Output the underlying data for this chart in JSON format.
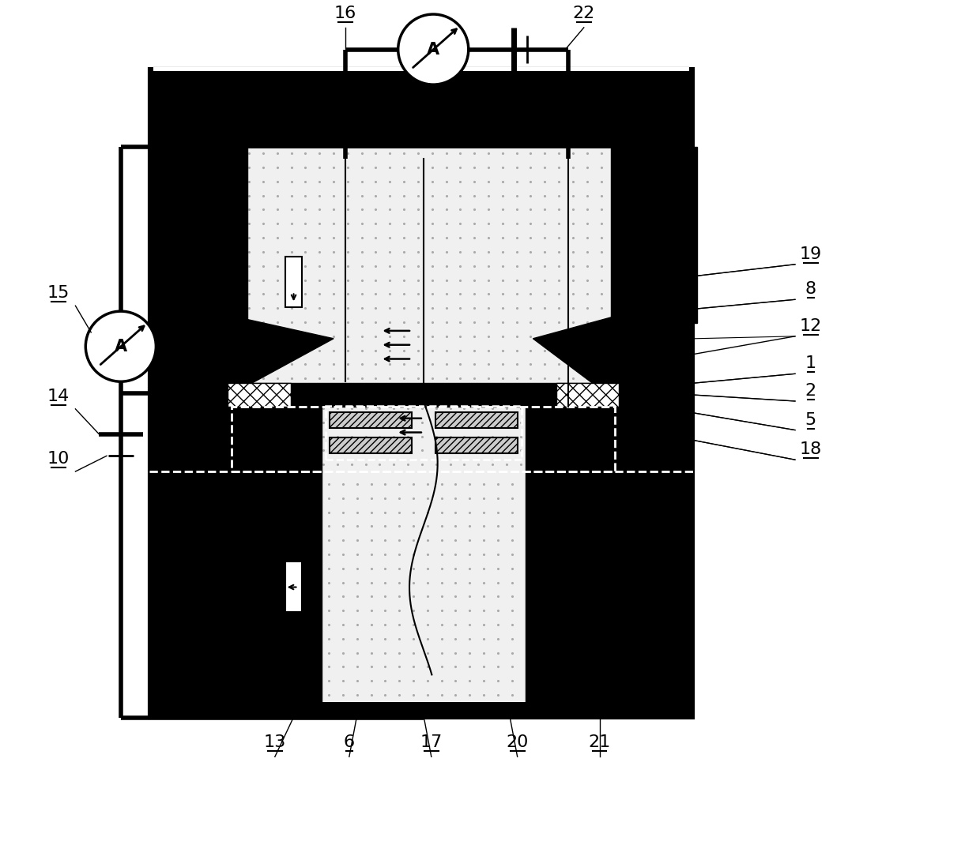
{
  "bg": "#ffffff",
  "black": "#000000",
  "dot_bg": "#f0f0f0",
  "dot_color": "#aaaaaa",
  "figsize": [
    12.4,
    10.65
  ],
  "dpi": 100
}
